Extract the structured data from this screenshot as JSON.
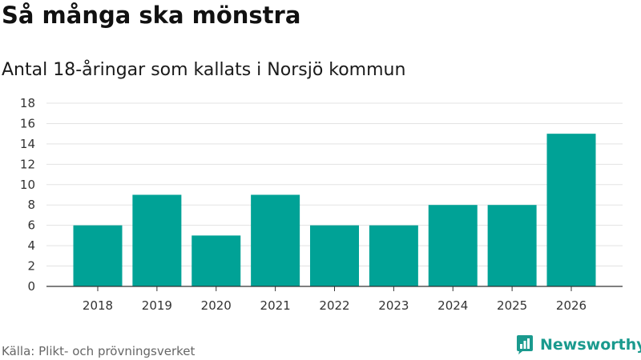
{
  "header": {
    "title": "Så många ska mönstra",
    "subtitle": "Antal 18-åringar som kallats i Norsjö kommun"
  },
  "footer": {
    "source": "Källa: Plikt- och prövningsverket",
    "brand": "Newsworthy"
  },
  "colors": {
    "bar": "#00a296",
    "grid": "#e3e3e3",
    "axis": "#333333",
    "brand": "#1a9a8e"
  },
  "chart_data": {
    "type": "bar",
    "title": "Så många ska mönstra",
    "subtitle": "Antal 18-åringar som kallats i Norsjö kommun",
    "xlabel": "",
    "ylabel": "",
    "categories": [
      "2018",
      "2019",
      "2020",
      "2021",
      "2022",
      "2023",
      "2024",
      "2025",
      "2026"
    ],
    "values": [
      6,
      9,
      5,
      9,
      6,
      6,
      8,
      8,
      15
    ],
    "ylim": [
      0,
      18
    ],
    "yticks": [
      0,
      2,
      4,
      6,
      8,
      10,
      12,
      14,
      16,
      18
    ],
    "grid": true
  }
}
